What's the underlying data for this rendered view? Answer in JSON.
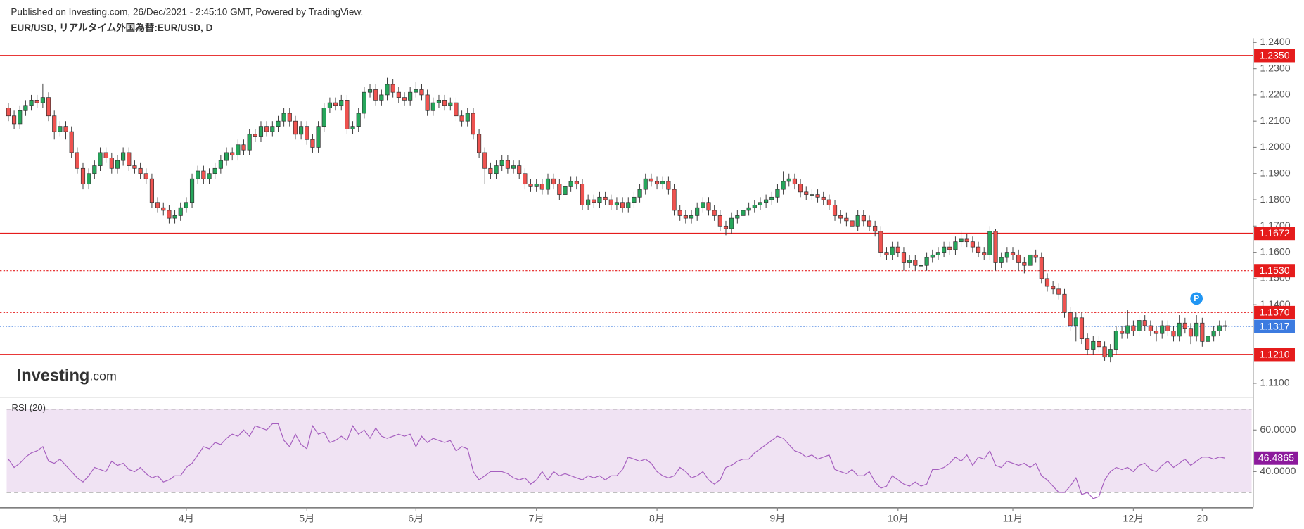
{
  "header": {
    "published": "Published on Investing.com, 26/Dec/2021 - 2:45:10 GMT, Powered by TradingView.",
    "symbol": "EUR/USD, リアルタイム外国為替:EUR/USD, D"
  },
  "logo": {
    "brand": "Investing",
    "suffix": ".com"
  },
  "chart_data": [
    {
      "type": "candlestick",
      "open": [
        1.215,
        1.212,
        1.209,
        1.214,
        1.216,
        1.218,
        1.217,
        1.219,
        1.212,
        1.206,
        1.208,
        1.206,
        1.198,
        1.192,
        1.186,
        1.19,
        1.193,
        1.198,
        1.196,
        1.192,
        1.195,
        1.198,
        1.193,
        1.192,
        1.19,
        1.188,
        1.179,
        1.177,
        1.176,
        1.173,
        1.174,
        1.177,
        1.179,
        1.188,
        1.191,
        1.188,
        1.19,
        1.192,
        1.195,
        1.198,
        1.197,
        1.201,
        1.199,
        1.205,
        1.204,
        1.208,
        1.206,
        1.208,
        1.21,
        1.213,
        1.21,
        1.205,
        1.208,
        1.203,
        1.2,
        1.208,
        1.215,
        1.217,
        1.216,
        1.218,
        1.207,
        1.208,
        1.213,
        1.221,
        1.222,
        1.218,
        1.22,
        1.224,
        1.221,
        1.219,
        1.218,
        1.221,
        1.222,
        1.22,
        1.214,
        1.217,
        1.218,
        1.216,
        1.217,
        1.212,
        1.21,
        1.213,
        1.205,
        1.198,
        1.192,
        1.19,
        1.193,
        1.195,
        1.192,
        1.193,
        1.19,
        1.186,
        1.185,
        1.186,
        1.184,
        1.188,
        1.186,
        1.182,
        1.185,
        1.187,
        1.186,
        1.178,
        1.18,
        1.179,
        1.181,
        1.18,
        1.178,
        1.179,
        1.177,
        1.179,
        1.181,
        1.184,
        1.188,
        1.187,
        1.186,
        1.187,
        1.184,
        1.176,
        1.174,
        1.173,
        1.174,
        1.177,
        1.179,
        1.176,
        1.174,
        1.17,
        1.169,
        1.173,
        1.174,
        1.176,
        1.177,
        1.178,
        1.179,
        1.18,
        1.181,
        1.184,
        1.187,
        1.188,
        1.186,
        1.183,
        1.182,
        1.182,
        1.181,
        1.18,
        1.178,
        1.174,
        1.173,
        1.172,
        1.17,
        1.174,
        1.172,
        1.17,
        1.168,
        1.16,
        1.159,
        1.162,
        1.16,
        1.156,
        1.157,
        1.155,
        1.155,
        1.158,
        1.159,
        1.16,
        1.162,
        1.161,
        1.164,
        1.165,
        1.164,
        1.162,
        1.16,
        1.159,
        1.168,
        1.156,
        1.158,
        1.16,
        1.159,
        1.156,
        1.155,
        1.159,
        1.158,
        1.15,
        1.147,
        1.146,
        1.144,
        1.137,
        1.132,
        1.135,
        1.127,
        1.123,
        1.126,
        1.124,
        1.12,
        1.123,
        1.13,
        1.129,
        1.132,
        1.13,
        1.134,
        1.132,
        1.13,
        1.129,
        1.132,
        1.13,
        1.128,
        1.133,
        1.131,
        1.128,
        1.133,
        1.126,
        1.128,
        1.13,
        1.132
      ],
      "high": [
        1.217,
        1.214,
        1.216,
        1.218,
        1.22,
        1.22,
        1.2243,
        1.221,
        1.214,
        1.21,
        1.21,
        1.208,
        1.2,
        1.194,
        1.192,
        1.195,
        1.2,
        1.2,
        1.198,
        1.197,
        1.2,
        1.2,
        1.195,
        1.194,
        1.192,
        1.19,
        1.181,
        1.179,
        1.178,
        1.176,
        1.179,
        1.181,
        1.19,
        1.193,
        1.193,
        1.192,
        1.194,
        1.197,
        1.2,
        1.2,
        1.203,
        1.203,
        1.207,
        1.207,
        1.21,
        1.21,
        1.21,
        1.212,
        1.215,
        1.215,
        1.212,
        1.21,
        1.21,
        1.205,
        1.21,
        1.217,
        1.219,
        1.219,
        1.22,
        1.22,
        1.21,
        1.215,
        1.223,
        1.224,
        1.224,
        1.222,
        1.2265,
        1.226,
        1.223,
        1.221,
        1.223,
        1.225,
        1.224,
        1.222,
        1.219,
        1.22,
        1.22,
        1.219,
        1.219,
        1.214,
        1.215,
        1.215,
        1.207,
        1.2,
        1.194,
        1.195,
        1.197,
        1.197,
        1.195,
        1.195,
        1.192,
        1.188,
        1.188,
        1.188,
        1.19,
        1.19,
        1.188,
        1.187,
        1.189,
        1.189,
        1.188,
        1.182,
        1.182,
        1.183,
        1.183,
        1.182,
        1.181,
        1.181,
        1.181,
        1.183,
        1.186,
        1.19,
        1.19,
        1.189,
        1.189,
        1.189,
        1.186,
        1.178,
        1.176,
        1.176,
        1.179,
        1.181,
        1.181,
        1.178,
        1.176,
        1.172,
        1.175,
        1.176,
        1.178,
        1.179,
        1.18,
        1.181,
        1.182,
        1.183,
        1.186,
        1.1909,
        1.19,
        1.19,
        1.188,
        1.185,
        1.184,
        1.184,
        1.183,
        1.182,
        1.18,
        1.176,
        1.175,
        1.174,
        1.176,
        1.176,
        1.174,
        1.172,
        1.17,
        1.162,
        1.164,
        1.164,
        1.162,
        1.159,
        1.159,
        1.157,
        1.16,
        1.161,
        1.162,
        1.164,
        1.164,
        1.166,
        1.168,
        1.167,
        1.166,
        1.164,
        1.162,
        1.17,
        1.169,
        1.16,
        1.162,
        1.162,
        1.161,
        1.158,
        1.161,
        1.161,
        1.16,
        1.152,
        1.149,
        1.148,
        1.146,
        1.139,
        1.137,
        1.137,
        1.129,
        1.128,
        1.128,
        1.126,
        1.125,
        1.132,
        1.132,
        1.138,
        1.134,
        1.136,
        1.136,
        1.134,
        1.132,
        1.134,
        1.134,
        1.132,
        1.136,
        1.135,
        1.133,
        1.136,
        1.135,
        1.13,
        1.132,
        1.134,
        1.134
      ],
      "low": [
        1.21,
        1.207,
        1.207,
        1.212,
        1.214,
        1.215,
        1.215,
        1.21,
        1.203,
        1.204,
        1.203,
        1.196,
        1.19,
        1.184,
        1.184,
        1.188,
        1.191,
        1.194,
        1.19,
        1.19,
        1.193,
        1.191,
        1.19,
        1.188,
        1.186,
        1.177,
        1.175,
        1.174,
        1.171,
        1.171,
        1.172,
        1.175,
        1.177,
        1.186,
        1.186,
        1.186,
        1.188,
        1.19,
        1.193,
        1.195,
        1.195,
        1.197,
        1.197,
        1.202,
        1.202,
        1.204,
        1.204,
        1.206,
        1.208,
        1.208,
        1.203,
        1.203,
        1.201,
        1.198,
        1.198,
        1.206,
        1.213,
        1.214,
        1.214,
        1.205,
        1.205,
        1.206,
        1.211,
        1.219,
        1.216,
        1.216,
        1.218,
        1.219,
        1.217,
        1.216,
        1.216,
        1.219,
        1.218,
        1.212,
        1.212,
        1.215,
        1.214,
        1.214,
        1.21,
        1.208,
        1.208,
        1.203,
        1.196,
        1.186,
        1.188,
        1.188,
        1.191,
        1.19,
        1.19,
        1.188,
        1.184,
        1.183,
        1.183,
        1.182,
        1.182,
        1.184,
        1.18,
        1.18,
        1.183,
        1.184,
        1.176,
        1.176,
        1.177,
        1.177,
        1.178,
        1.176,
        1.176,
        1.175,
        1.175,
        1.177,
        1.179,
        1.182,
        1.185,
        1.184,
        1.184,
        1.182,
        1.174,
        1.172,
        1.171,
        1.171,
        1.172,
        1.175,
        1.174,
        1.172,
        1.168,
        1.1665,
        1.167,
        1.171,
        1.172,
        1.174,
        1.175,
        1.176,
        1.177,
        1.178,
        1.179,
        1.182,
        1.185,
        1.184,
        1.181,
        1.18,
        1.18,
        1.179,
        1.178,
        1.176,
        1.172,
        1.171,
        1.17,
        1.168,
        1.168,
        1.17,
        1.168,
        1.166,
        1.158,
        1.157,
        1.157,
        1.158,
        1.153,
        1.154,
        1.153,
        1.153,
        1.153,
        1.156,
        1.157,
        1.158,
        1.159,
        1.159,
        1.162,
        1.162,
        1.16,
        1.158,
        1.157,
        1.157,
        1.153,
        1.154,
        1.156,
        1.157,
        1.153,
        1.152,
        1.153,
        1.156,
        1.148,
        1.145,
        1.144,
        1.142,
        1.135,
        1.13,
        1.126,
        1.125,
        1.121,
        1.121,
        1.122,
        1.1186,
        1.118,
        1.121,
        1.127,
        1.127,
        1.128,
        1.128,
        1.13,
        1.128,
        1.126,
        1.127,
        1.128,
        1.126,
        1.126,
        1.129,
        1.125,
        1.126,
        1.124,
        1.124,
        1.126,
        1.128,
        1.13
      ],
      "close": [
        1.212,
        1.209,
        1.214,
        1.216,
        1.218,
        1.217,
        1.219,
        1.212,
        1.206,
        1.208,
        1.206,
        1.198,
        1.192,
        1.186,
        1.19,
        1.193,
        1.198,
        1.196,
        1.192,
        1.195,
        1.198,
        1.193,
        1.192,
        1.19,
        1.188,
        1.179,
        1.177,
        1.176,
        1.173,
        1.174,
        1.177,
        1.179,
        1.188,
        1.191,
        1.188,
        1.19,
        1.192,
        1.195,
        1.198,
        1.197,
        1.201,
        1.199,
        1.205,
        1.204,
        1.208,
        1.206,
        1.208,
        1.21,
        1.213,
        1.21,
        1.205,
        1.208,
        1.203,
        1.2,
        1.208,
        1.215,
        1.217,
        1.216,
        1.218,
        1.207,
        1.208,
        1.213,
        1.221,
        1.222,
        1.218,
        1.22,
        1.224,
        1.221,
        1.219,
        1.218,
        1.221,
        1.222,
        1.22,
        1.214,
        1.217,
        1.218,
        1.216,
        1.217,
        1.212,
        1.21,
        1.213,
        1.205,
        1.198,
        1.192,
        1.19,
        1.193,
        1.195,
        1.192,
        1.193,
        1.19,
        1.186,
        1.185,
        1.186,
        1.184,
        1.188,
        1.186,
        1.182,
        1.185,
        1.187,
        1.186,
        1.178,
        1.18,
        1.179,
        1.181,
        1.18,
        1.178,
        1.179,
        1.177,
        1.179,
        1.181,
        1.184,
        1.188,
        1.187,
        1.186,
        1.187,
        1.184,
        1.176,
        1.174,
        1.173,
        1.174,
        1.177,
        1.179,
        1.176,
        1.174,
        1.17,
        1.169,
        1.173,
        1.174,
        1.176,
        1.177,
        1.178,
        1.179,
        1.18,
        1.181,
        1.184,
        1.187,
        1.188,
        1.186,
        1.183,
        1.182,
        1.182,
        1.181,
        1.18,
        1.178,
        1.174,
        1.173,
        1.172,
        1.17,
        1.174,
        1.172,
        1.17,
        1.168,
        1.16,
        1.159,
        1.162,
        1.16,
        1.156,
        1.157,
        1.155,
        1.155,
        1.158,
        1.159,
        1.16,
        1.162,
        1.161,
        1.164,
        1.165,
        1.164,
        1.162,
        1.16,
        1.159,
        1.168,
        1.156,
        1.158,
        1.16,
        1.159,
        1.156,
        1.155,
        1.159,
        1.158,
        1.15,
        1.147,
        1.146,
        1.144,
        1.137,
        1.132,
        1.135,
        1.127,
        1.123,
        1.126,
        1.124,
        1.12,
        1.123,
        1.13,
        1.129,
        1.132,
        1.13,
        1.134,
        1.132,
        1.13,
        1.129,
        1.132,
        1.13,
        1.128,
        1.133,
        1.131,
        1.128,
        1.133,
        1.126,
        1.128,
        1.13,
        1.132,
        1.1317
      ],
      "up_color": "#26a65b",
      "down_color": "#ef5350",
      "last_color": "#3c7be0",
      "xlim": [
        -0.3,
        216.6
      ],
      "xticks": [
        {
          "value": 9,
          "label": "3月"
        },
        {
          "value": 31,
          "label": "4月"
        },
        {
          "value": 52,
          "label": "5月"
        },
        {
          "value": 71,
          "label": "6月"
        },
        {
          "value": 92,
          "label": "7月"
        },
        {
          "value": 113,
          "label": "8月"
        },
        {
          "value": 134,
          "label": "9月"
        },
        {
          "value": 155,
          "label": "10月"
        },
        {
          "value": 175,
          "label": "11月"
        },
        {
          "value": 196,
          "label": "12月"
        },
        {
          "value": 208,
          "label": "20"
        }
      ],
      "ylim": [
        1.1049,
        1.2416
      ],
      "yticks": [
        {
          "value": 1.24,
          "label": "1.2400"
        },
        {
          "value": 1.23,
          "label": "1.2300"
        },
        {
          "value": 1.22,
          "label": "1.2200"
        },
        {
          "value": 1.21,
          "label": "1.2100"
        },
        {
          "value": 1.2,
          "label": "1.2000"
        },
        {
          "value": 1.19,
          "label": "1.1900"
        },
        {
          "value": 1.18,
          "label": "1.1800"
        },
        {
          "value": 1.17,
          "label": "1.1700"
        },
        {
          "value": 1.16,
          "label": "1.1600"
        },
        {
          "value": 1.15,
          "label": "1.1500"
        },
        {
          "value": 1.14,
          "label": "1.1400"
        },
        {
          "value": 1.11,
          "label": "1.1100"
        }
      ],
      "levels": [
        {
          "value": 1.235,
          "label": "1.2350",
          "style": "solid",
          "color": "#e51c1c"
        },
        {
          "value": 1.1672,
          "label": "1.1672",
          "style": "solid",
          "color": "#e51c1c"
        },
        {
          "value": 1.153,
          "label": "1.1530",
          "style": "dotted",
          "color": "#e51c1c"
        },
        {
          "value": 1.137,
          "label": "1.1370",
          "style": "dotted",
          "color": "#e51c1c"
        },
        {
          "value": 1.121,
          "label": "1.1210",
          "style": "solid",
          "color": "#e51c1c"
        }
      ],
      "annotations": [
        {
          "text": "P",
          "at": 207,
          "color": "#2196f3"
        }
      ]
    },
    {
      "type": "line",
      "title": "RSI (20)",
      "color": "#a65fbf",
      "last_color": "#8c1a9c",
      "band_color": "#f0e3f3",
      "values": [
        46,
        42,
        44,
        47,
        49,
        50,
        52,
        45,
        44,
        46,
        43,
        40,
        37,
        35,
        38,
        42,
        41,
        40,
        45,
        43,
        44,
        41,
        40,
        42,
        39,
        37,
        38,
        35,
        36,
        38,
        38,
        42,
        44,
        48,
        52,
        51,
        54,
        53,
        56,
        58,
        57,
        60,
        57,
        62,
        61,
        60,
        63,
        63,
        55,
        52,
        58,
        53,
        51,
        62,
        58,
        59,
        54,
        55,
        57,
        55,
        62,
        58,
        60,
        56,
        61,
        57,
        56,
        57,
        58,
        57,
        58,
        52,
        57,
        54,
        56,
        55,
        54,
        55,
        50,
        52,
        51,
        40,
        36,
        38,
        40,
        40,
        40,
        39,
        37,
        36,
        37,
        34,
        36,
        40,
        36,
        40,
        38,
        39,
        38,
        37,
        36,
        38,
        37,
        38,
        36,
        38,
        38,
        41,
        47,
        46,
        45,
        46,
        44,
        40,
        38,
        37,
        38,
        42,
        40,
        37,
        38,
        40,
        36,
        34,
        36,
        42,
        43,
        45,
        46,
        46,
        49,
        51,
        53,
        55,
        57,
        56,
        53,
        50,
        49,
        47,
        48,
        46,
        47,
        48,
        41,
        40,
        39,
        41,
        38,
        38,
        40,
        35,
        32,
        33,
        38,
        36,
        34,
        33,
        35,
        33,
        34,
        41,
        41,
        42,
        44,
        47,
        45,
        48,
        43,
        47,
        46,
        50,
        43,
        42,
        45,
        44,
        43,
        44,
        42,
        44,
        38,
        36,
        33,
        30,
        30,
        33,
        37,
        29,
        30,
        27,
        28,
        36,
        40,
        42,
        41,
        42,
        40,
        43,
        44,
        41,
        40,
        43,
        45,
        42,
        44,
        46,
        43,
        45,
        47,
        47,
        46,
        47,
        46.4865
      ],
      "ylim": [
        22.8,
        75.6
      ],
      "yticks": [
        {
          "value": 60,
          "label": "60.0000"
        },
        {
          "value": 40,
          "label": "40.0000"
        }
      ],
      "band": [
        30,
        70
      ]
    }
  ]
}
